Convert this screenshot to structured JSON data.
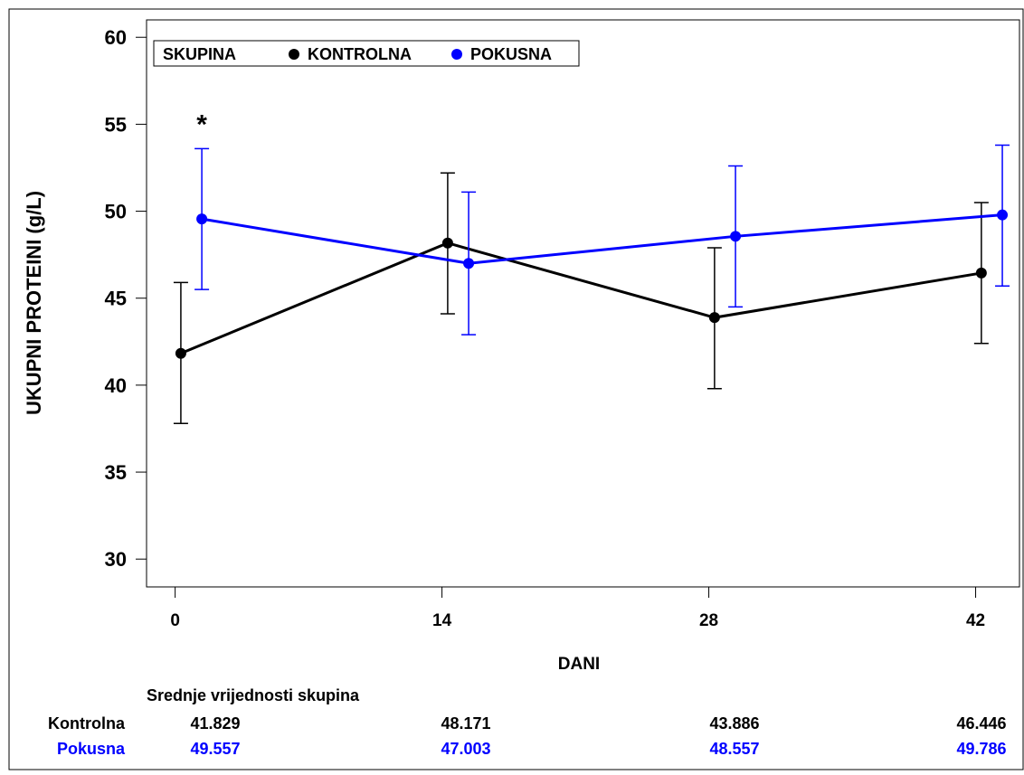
{
  "chart_data": {
    "type": "line",
    "xlabel": "DANI",
    "ylabel": "UKUPNI PROTEINI (g/L)",
    "xlim": [
      -1.5,
      44.3
    ],
    "ylim": [
      28.4,
      61
    ],
    "x_ticks": [
      0,
      14,
      28,
      42
    ],
    "x_tick_labels": [
      "0",
      "14",
      "28",
      "42"
    ],
    "y_ticks": [
      30,
      35,
      40,
      45,
      50,
      55,
      60
    ],
    "y_tick_labels": [
      "30",
      "35",
      "40",
      "45",
      "50",
      "55",
      "60"
    ],
    "grid": false,
    "legend": {
      "title": "SKUPINA",
      "placement": "top-left",
      "entries": [
        "KONTROLNA",
        "POKUSNA"
      ]
    },
    "series": [
      {
        "name": "KONTROLNA",
        "color": "#000000",
        "x": [
          0.3,
          14.3,
          28.3,
          42.3
        ],
        "values": [
          41.829,
          48.171,
          43.886,
          46.446
        ],
        "error_low": [
          37.8,
          44.1,
          39.8,
          42.4
        ],
        "error_high": [
          45.9,
          52.2,
          47.9,
          50.5
        ]
      },
      {
        "name": "POKUSNA",
        "color": "#0000ff",
        "x": [
          1.4,
          15.4,
          29.4,
          43.4
        ],
        "values": [
          49.557,
          47.003,
          48.557,
          49.786
        ],
        "error_low": [
          45.5,
          42.9,
          44.5,
          45.7
        ],
        "error_high": [
          53.6,
          51.1,
          52.6,
          53.8
        ]
      }
    ],
    "annotations": [
      {
        "text": "*",
        "x": 1.4,
        "y": 55.2
      }
    ],
    "table": {
      "title": "Srednje vrijednosti skupina",
      "rows": [
        {
          "label": "Kontrolna",
          "color": "#000000",
          "values": [
            "41.829",
            "48.171",
            "43.886",
            "46.446"
          ]
        },
        {
          "label": "Pokusna",
          "color": "#0000ff",
          "values": [
            "49.557",
            "47.003",
            "48.557",
            "49.786"
          ]
        }
      ]
    }
  }
}
